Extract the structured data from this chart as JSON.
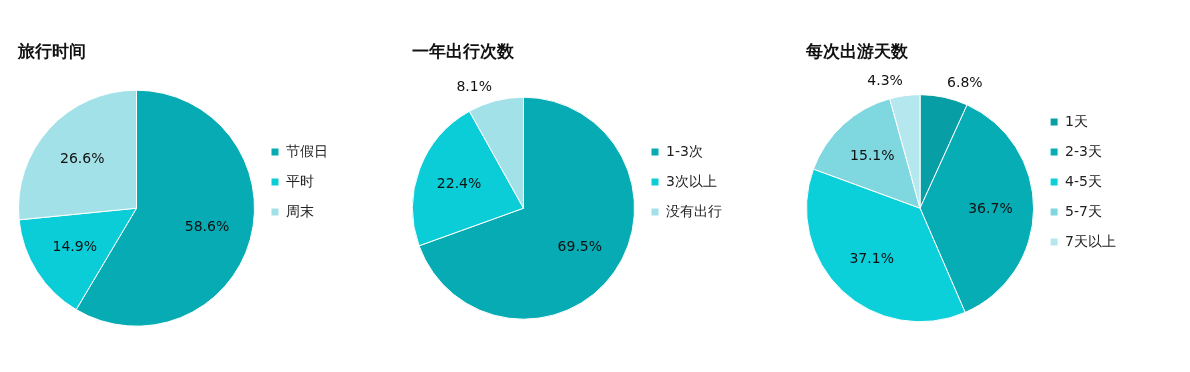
{
  "chart_data": [
    {
      "type": "pie",
      "title": "旅行时间",
      "categories": [
        "节假日",
        "平时",
        "周末"
      ],
      "values": [
        58.6,
        14.9,
        26.6
      ],
      "colors": [
        "#06abb3",
        "#0bcdd8",
        "#a3e1e8"
      ],
      "value_labels": [
        "58.6%",
        "14.9%",
        "26.6%"
      ],
      "legend": "right"
    },
    {
      "type": "pie",
      "title": "一年出行次数",
      "categories": [
        "1-3次",
        "3次以上",
        "没有出行"
      ],
      "values": [
        69.5,
        22.4,
        8.1
      ],
      "colors": [
        "#06abb3",
        "#0bcdd8",
        "#a3e1e8"
      ],
      "value_labels": [
        "69.5%",
        "22.4%",
        "8.1%"
      ],
      "legend": "right"
    },
    {
      "type": "pie",
      "title": "每次出游天数",
      "categories": [
        "1天",
        "2-3天",
        "4-5天",
        "5-7天",
        "7天以上"
      ],
      "values": [
        6.8,
        36.7,
        37.1,
        15.1,
        4.3
      ],
      "colors": [
        "#079ea6",
        "#06adb5",
        "#0bcfd9",
        "#7fd8e0",
        "#b5e8ee"
      ],
      "value_labels": [
        "6.8%",
        "36.7%",
        "37.1%",
        "15.1%",
        "4.3%"
      ],
      "legend": "right"
    }
  ]
}
